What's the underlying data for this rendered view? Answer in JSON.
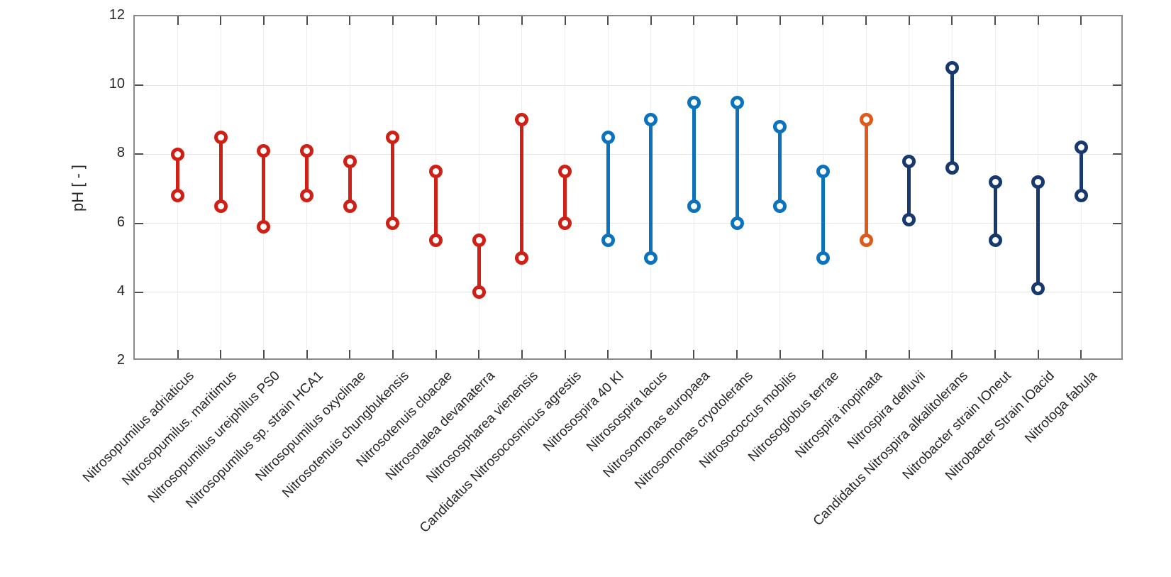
{
  "chart_data": {
    "type": "rangebar",
    "title": "",
    "ylabel": "pH [ - ]",
    "xlabel": "",
    "ylim": [
      2,
      12
    ],
    "yticks": [
      2,
      4,
      6,
      8,
      10,
      12
    ],
    "grid": true,
    "legend": "none",
    "group_colors": {
      "red": "#d01f14",
      "blue": "#0b72bd",
      "orange": "#de5a1b",
      "navy": "#17396d"
    },
    "series": [
      {
        "label": "Nitrosopumilus adriaticus",
        "ph_min": 6.8,
        "ph_max": 8.0,
        "color": "#d01f14"
      },
      {
        "label": "Nitrosopumilus. maritimus",
        "ph_min": 6.5,
        "ph_max": 8.5,
        "color": "#d01f14"
      },
      {
        "label": "Nitrosopumilus ureiphilus PS0",
        "ph_min": 5.9,
        "ph_max": 8.1,
        "color": "#d01f14"
      },
      {
        "label": "Nitrosopumilus sp. strain HCA1",
        "ph_min": 6.8,
        "ph_max": 8.1,
        "color": "#d01f14"
      },
      {
        "label": "Nitrosopumilus oxyclinae",
        "ph_min": 6.5,
        "ph_max": 7.8,
        "color": "#d01f14"
      },
      {
        "label": "Nitrosotenuis chungbukensis",
        "ph_min": 6.0,
        "ph_max": 8.5,
        "color": "#d01f14"
      },
      {
        "label": "Nitrosotenuis cloacae",
        "ph_min": 5.5,
        "ph_max": 7.5,
        "color": "#d01f14"
      },
      {
        "label": "Nitrosotalea devanaterra",
        "ph_min": 4.0,
        "ph_max": 5.5,
        "color": "#d01f14"
      },
      {
        "label": "Nitrosospharea vienensis",
        "ph_min": 5.0,
        "ph_max": 9.0,
        "color": "#d01f14"
      },
      {
        "label": "Candidatus Nitrosocosmicus agrestis",
        "ph_min": 6.0,
        "ph_max": 7.5,
        "color": "#d01f14"
      },
      {
        "label": "Nitrosospira 40 KI",
        "ph_min": 5.5,
        "ph_max": 8.5,
        "color": "#0b72bd"
      },
      {
        "label": "Nitrosospira lacus",
        "ph_min": 5.0,
        "ph_max": 9.0,
        "color": "#0b72bd"
      },
      {
        "label": "Nitrosomonas europaea",
        "ph_min": 6.5,
        "ph_max": 9.5,
        "color": "#0b72bd"
      },
      {
        "label": "Nitrosomonas cryotolerans",
        "ph_min": 6.0,
        "ph_max": 9.5,
        "color": "#0b72bd"
      },
      {
        "label": "Nitrosococcus mobilis",
        "ph_min": 6.5,
        "ph_max": 8.8,
        "color": "#0b72bd"
      },
      {
        "label": "Nitrosoglobus terrae",
        "ph_min": 5.0,
        "ph_max": 7.5,
        "color": "#0b72bd"
      },
      {
        "label": "Nitrospira inopinata",
        "ph_min": 5.5,
        "ph_max": 9.0,
        "color": "#de5a1b"
      },
      {
        "label": "Nitrospira defluvii",
        "ph_min": 6.1,
        "ph_max": 7.8,
        "color": "#17396d"
      },
      {
        "label": "Candidatus Nitrospira alkalitolerans",
        "ph_min": 7.6,
        "ph_max": 10.5,
        "color": "#17396d"
      },
      {
        "label": "Nitrobacter strain IOneut",
        "ph_min": 5.5,
        "ph_max": 7.2,
        "color": "#17396d"
      },
      {
        "label": "Nitrobacter Strain IOacid",
        "ph_min": 4.1,
        "ph_max": 7.2,
        "color": "#17396d"
      },
      {
        "label": "Nitrotoga fabula",
        "ph_min": 6.8,
        "ph_max": 8.2,
        "color": "#17396d"
      }
    ]
  }
}
